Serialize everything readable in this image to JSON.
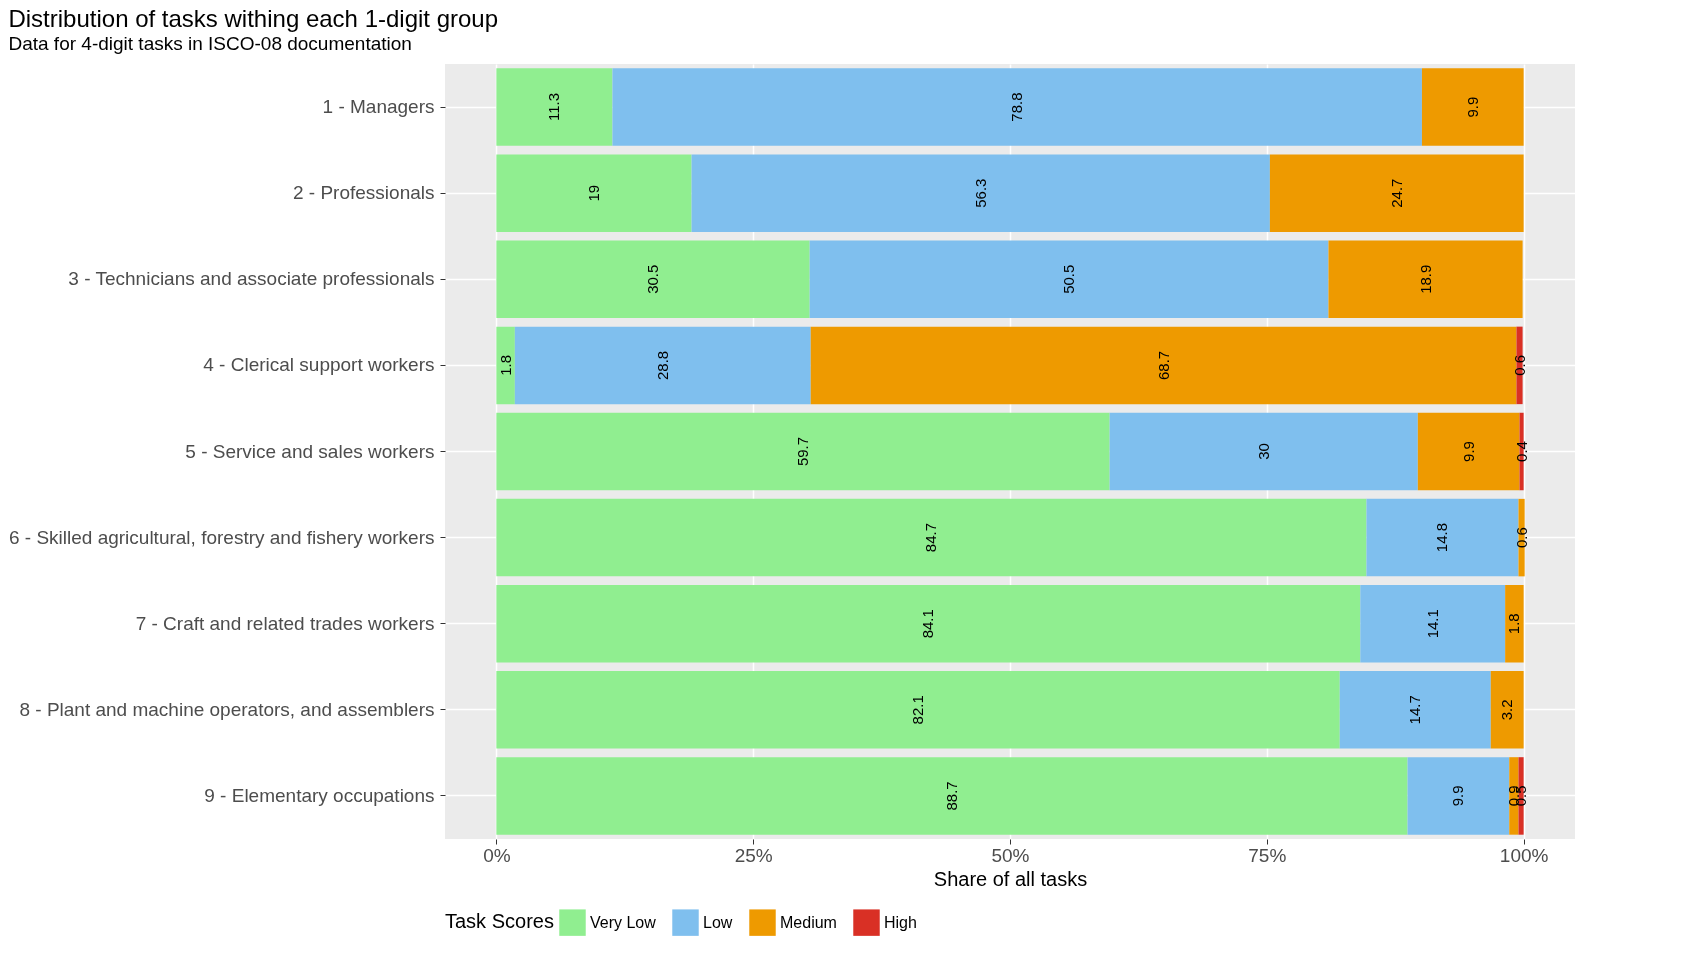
{
  "chart_data": {
    "type": "bar",
    "orientation": "horizontal",
    "stacked": true,
    "title": "Distribution of tasks withing each 1-digit group",
    "subtitle": "Data for 4-digit tasks in ISCO-08 documentation",
    "xlabel": "Share of all tasks",
    "legend_title": "Task Scores",
    "legend": "bottom",
    "grid": true,
    "data_labels": true,
    "categories": [
      "1 - Managers",
      "2 - Professionals",
      "3 - Technicians and associate professionals",
      "4 - Clerical support workers",
      "5 - Service and sales workers",
      "6 - Skilled agricultural, forestry and fishery workers",
      "7 - Craft and related trades workers",
      "8 - Plant and machine operators, and assemblers",
      "9 - Elementary occupations"
    ],
    "xlim": [
      -5,
      105
    ],
    "xticks": [
      {
        "value": 0,
        "label": "0%"
      },
      {
        "value": 25,
        "label": "25%"
      },
      {
        "value": 50,
        "label": "50%"
      },
      {
        "value": 75,
        "label": "75%"
      },
      {
        "value": 100,
        "label": "100%"
      }
    ],
    "series": [
      {
        "name": "Very Low",
        "color": "#90ee90",
        "values": [
          11.3,
          19,
          30.5,
          1.8,
          59.7,
          84.7,
          84.1,
          82.1,
          88.7
        ]
      },
      {
        "name": "Low",
        "color": "#7fbfee",
        "values": [
          78.8,
          56.3,
          50.5,
          28.8,
          30,
          14.8,
          14.1,
          14.7,
          9.9
        ]
      },
      {
        "name": "Medium",
        "color": "#ee9a00",
        "values": [
          9.9,
          24.7,
          18.9,
          68.7,
          9.9,
          0.6,
          1.8,
          3.2,
          0.9
        ]
      },
      {
        "name": "High",
        "color": "#d93025",
        "values": [
          null,
          null,
          null,
          0.6,
          0.4,
          null,
          null,
          null,
          0.5
        ]
      }
    ]
  }
}
